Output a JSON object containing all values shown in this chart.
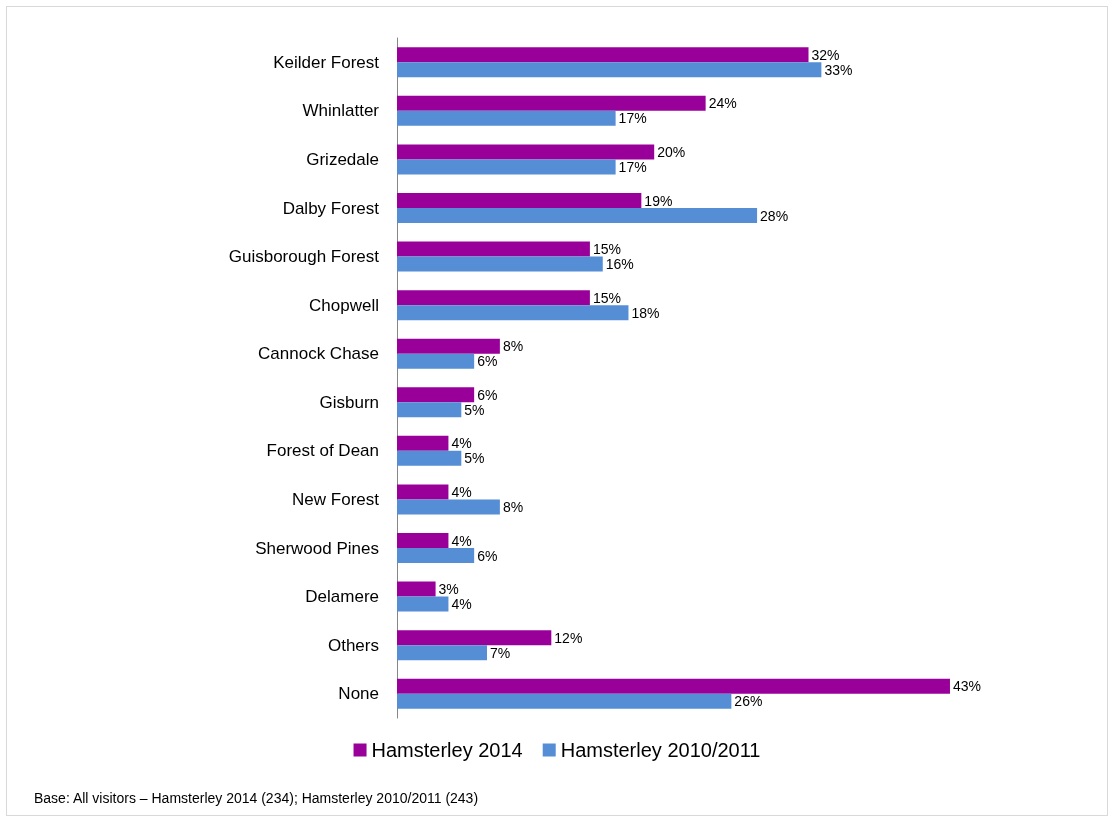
{
  "chart_data": {
    "type": "bar",
    "orientation": "horizontal",
    "categories": [
      "Keilder Forest",
      "Whinlatter",
      "Grizedale",
      "Dalby Forest",
      "Guisborough Forest",
      "Chopwell",
      "Cannock Chase",
      "Gisburn",
      "Forest of Dean",
      "New Forest",
      "Sherwood Pines",
      "Delamere",
      "Others",
      "None"
    ],
    "series": [
      {
        "name": "Hamsterley 2014",
        "color": "#990099",
        "values": [
          32,
          24,
          20,
          19,
          15,
          15,
          8,
          6,
          4,
          4,
          4,
          3,
          12,
          43
        ],
        "value_labels": [
          "32%",
          "24%",
          "20%",
          "19%",
          "15%",
          "15%",
          "8%",
          "6%",
          "4%",
          "4%",
          "4%",
          "3%",
          "12%",
          "43%"
        ]
      },
      {
        "name": "Hamsterley 2010/2011",
        "color": "#558ed5",
        "values": [
          33,
          17,
          17,
          28,
          16,
          18,
          6,
          5,
          5,
          8,
          6,
          4,
          7,
          26
        ],
        "value_labels": [
          "33%",
          "17%",
          "17%",
          "28%",
          "16%",
          "18%",
          "6%",
          "5%",
          "5%",
          "8%",
          "6%",
          "4%",
          "7%",
          "26%"
        ]
      }
    ],
    "legend": "bottom",
    "annotations": [
      "Base: All visitors – Hamsterley 2014 (234); Hamsterley 2010/2011 (243)"
    ]
  }
}
